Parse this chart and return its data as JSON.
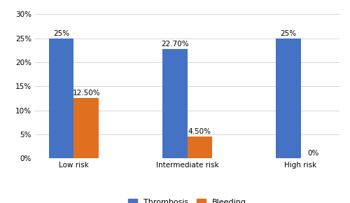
{
  "categories": [
    "Low risk",
    "Intermediate risk",
    "High risk"
  ],
  "thrombosis_values": [
    25.0,
    22.7,
    25.0
  ],
  "bleeding_values": [
    12.5,
    4.5,
    0.0
  ],
  "thrombosis_labels": [
    "25%",
    "22.70%",
    "25%"
  ],
  "bleeding_labels": [
    "12.50%",
    "4.50%",
    "0%"
  ],
  "thrombosis_color": "#4472C4",
  "bleeding_color": "#E07020",
  "ylim": [
    0,
    30
  ],
  "yticks": [
    0,
    5,
    10,
    15,
    20,
    25,
    30
  ],
  "ytick_labels": [
    "0%",
    "5%",
    "10%",
    "15%",
    "20%",
    "25%",
    "30%"
  ],
  "legend_labels": [
    "Thrombosis",
    "Bleeding"
  ],
  "bar_width": 0.22,
  "figsize": [
    5.0,
    2.9
  ],
  "dpi": 100,
  "background_color": "#ffffff",
  "label_fontsize": 7.5,
  "tick_fontsize": 7.5,
  "legend_fontsize": 8
}
